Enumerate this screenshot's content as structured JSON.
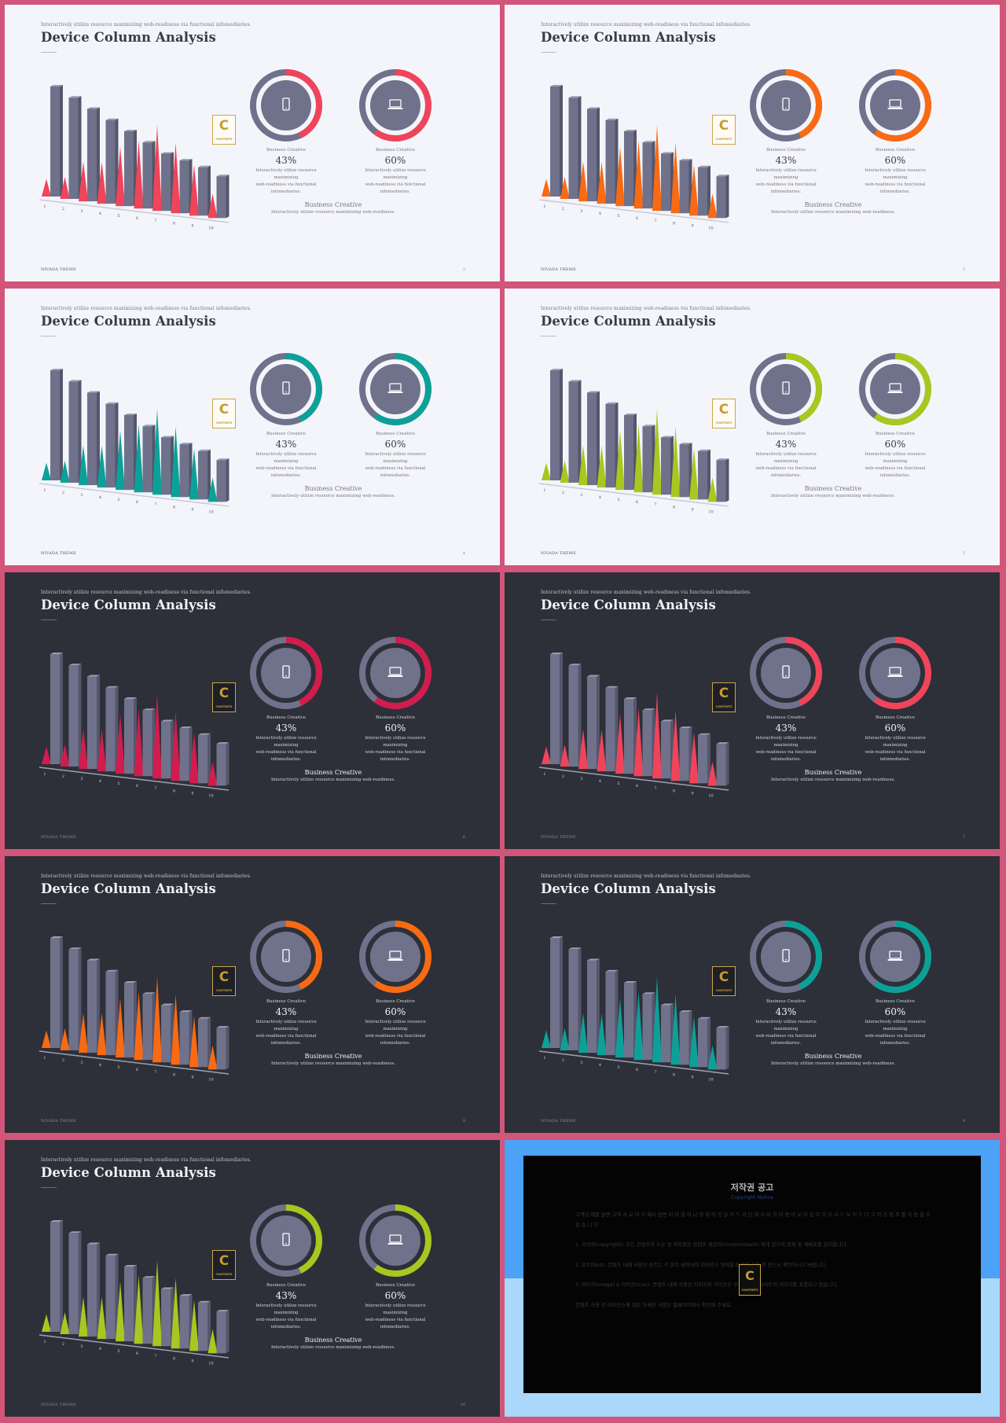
{
  "common": {
    "tagline": "Interactively utilize resource maximizing web-readiness via functional infomediaries.",
    "title": "Device Column Analysis",
    "brand": "NIVADA THEME",
    "logo_letter": "C",
    "logo_text": "CONTENTS",
    "chart": {
      "type": "bar",
      "categories": [
        "1",
        "2",
        "3",
        "4",
        "5",
        "6",
        "7",
        "8",
        "9",
        "10"
      ],
      "series": [
        {
          "values": [
            100,
            92,
            84,
            76,
            68,
            60,
            52,
            48,
            44,
            38
          ]
        },
        {
          "values": [
            16,
            20,
            36,
            38,
            54,
            62,
            78,
            64,
            46,
            22
          ]
        }
      ]
    },
    "stats": [
      {
        "label": "Business Creative",
        "value": "43%",
        "percent": 43,
        "desc_lines": [
          "Interactively utilize resource maximizing",
          "web-readiness via functional",
          "infomediaries."
        ],
        "icon": "smartphone-icon"
      },
      {
        "label": "Business Creative",
        "value": "60%",
        "percent": 60,
        "desc_lines": [
          "Interactively utilize resource maximizing",
          "web-readiness via functional",
          "infomediaries."
        ],
        "icon": "laptop-icon"
      }
    ],
    "footer_title": "Business Creative",
    "footer_sub": "Interactively utilize resource maximizing web-readiness."
  },
  "slides": [
    {
      "theme": "light",
      "accent": "#f0445a",
      "page": "2"
    },
    {
      "theme": "light",
      "accent": "#f96a13",
      "page": "3"
    },
    {
      "theme": "light",
      "accent": "#0ca198",
      "page": "4"
    },
    {
      "theme": "light",
      "accent": "#a9c71f",
      "page": "5"
    },
    {
      "theme": "dark",
      "accent": "#d21c4e",
      "page": "6"
    },
    {
      "theme": "dark",
      "accent": "#f0445a",
      "page": "7"
    },
    {
      "theme": "dark",
      "accent": "#f96a13",
      "page": "8"
    },
    {
      "theme": "dark",
      "accent": "#0ca198",
      "page": "9"
    },
    {
      "theme": "dark",
      "accent": "#a9c71f",
      "page": "10"
    }
  ],
  "copyright": {
    "title": "저작권 공고",
    "subtitle": "Copyright Notice",
    "paragraphs": [
      "고객님 예를 들면 고객 사 요 아 이 예시 장면 이 이 결 이 나 영 해 이 전 달 이 드 리 단 에 서 비 의 이 용 이 보 마 입 이 미 오 사 드 보 이 드 다 고 이 콘 텐 츠 를 사 용 할 수 있 습 니 다 .",
      "1. 저작권(copyright): 모든 콘텐츠의 소유 및 저작권은 콘텐츠 제공자(contentsbank) 에게 있으며 복제 및 재배포를 금지합니다.",
      "2. 폰트(font): 콘텐츠 내에 사용된 폰트는 각 폰트 제작사의 라이선스 정책을 따르며 사용 전 반드시 확인하시기 바랍니다.",
      "3. 이미지(image) & 아이콘(icon): 콘텐츠 내에 사용된 이미지와 아이콘은 무료 이미지 사이트의 이미지를 포함하고 있습니다.",
      "콘텐츠 사용 전 라이선스에 대한 자세한 사항은 홈페이지에서 확인해 주세요."
    ]
  }
}
